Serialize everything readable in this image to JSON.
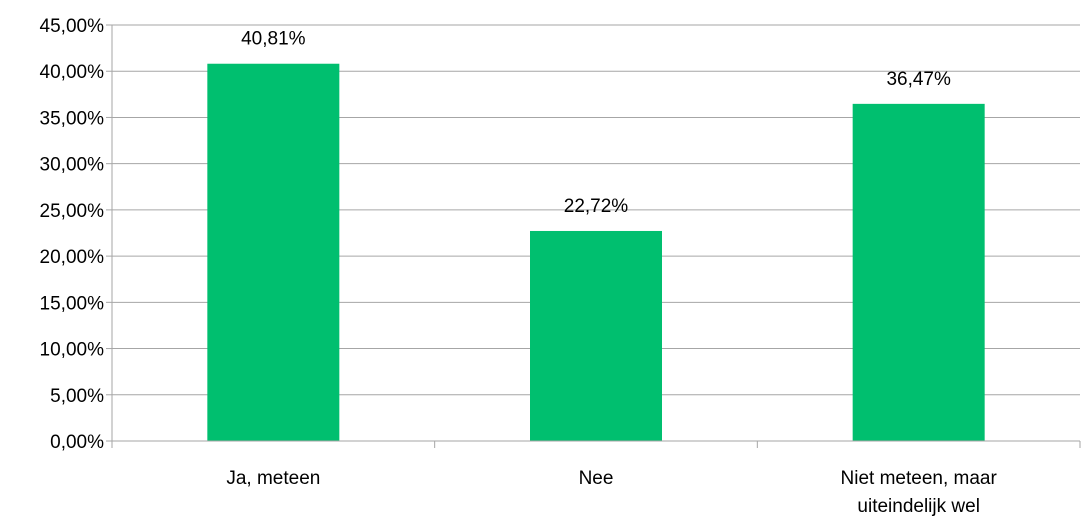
{
  "chart_data": {
    "type": "bar",
    "categories": [
      [
        "Ja, meteen"
      ],
      [
        "Nee"
      ],
      [
        "Niet meteen, maar",
        "uiteindelijk wel"
      ]
    ],
    "values": [
      40.81,
      22.72,
      36.47
    ],
    "data_labels": [
      "40,81%",
      "22,72%",
      "36,47%"
    ],
    "ylim": [
      0,
      45
    ],
    "yticks": [
      0,
      5,
      10,
      15,
      20,
      25,
      30,
      35,
      40,
      45
    ],
    "ytick_labels": [
      "0,00%",
      "5,00%",
      "10,00%",
      "15,00%",
      "20,00%",
      "25,00%",
      "30,00%",
      "35,00%",
      "40,00%",
      "45,00%"
    ],
    "grid": true,
    "bar_color": "#00bf6f",
    "grid_color": "#a6a6a6",
    "title": "",
    "xlabel": "",
    "ylabel": ""
  }
}
